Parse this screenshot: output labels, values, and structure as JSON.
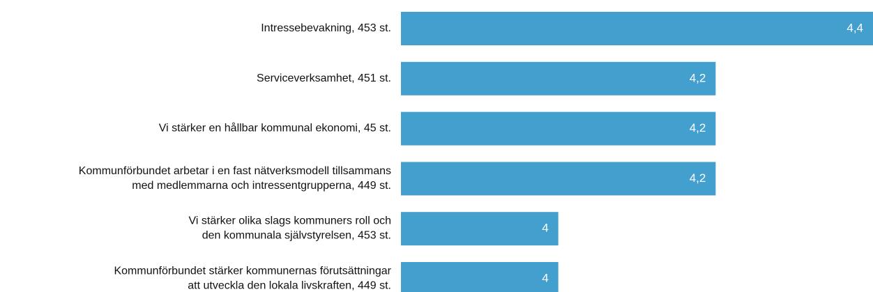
{
  "chart_data": {
    "type": "barh",
    "categories": [
      "Intressebevakning, 453 st.",
      "Serviceverksamhet, 451 st.",
      "Vi stärker en hållbar kommunal ekonomi, 45 st.",
      "Kommunförbundet arbetar i en fast nätverksmodell tillsammans\nmed medlemmarna och intressentgrupperna, 449 st.",
      "Vi stärker olika slags kommuners roll och\nden kommunala självstyrelsen, 453 st.",
      "Kommunförbundet stärker kommunernas förutsättningar\natt utveckla den lokala livskraften, 449 st."
    ],
    "values": [
      4.4,
      4.2,
      4.2,
      4.2,
      4,
      4
    ],
    "value_labels": [
      "4,4",
      "4,2",
      "4,2",
      "4,2",
      "4",
      "4"
    ],
    "color": "#439fcd",
    "xlim": [
      3.8,
      4.4
    ]
  }
}
